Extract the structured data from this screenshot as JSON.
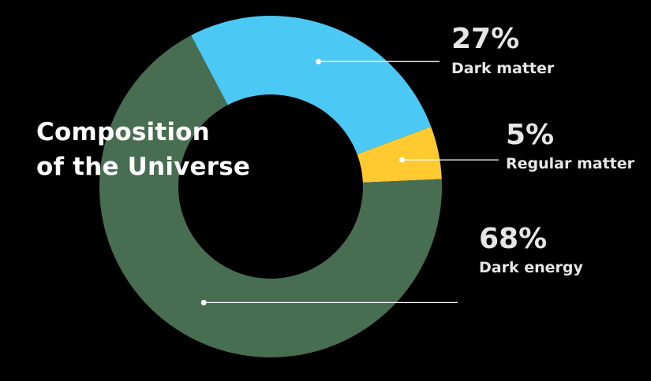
{
  "chart_data": {
    "type": "pie",
    "title_lines": [
      "Composition",
      "of the Universe"
    ],
    "slices": [
      {
        "label": "Dark matter",
        "display": "27%",
        "value": 27,
        "color": "#4CC8F4"
      },
      {
        "label": "Regular matter",
        "display": "5%",
        "value": 5,
        "color": "#FFC930"
      },
      {
        "label": "Dark energy",
        "display": "68%",
        "value": 68,
        "color": "#486E52"
      }
    ],
    "background": "#000000",
    "leader_color": "#ffffff"
  }
}
